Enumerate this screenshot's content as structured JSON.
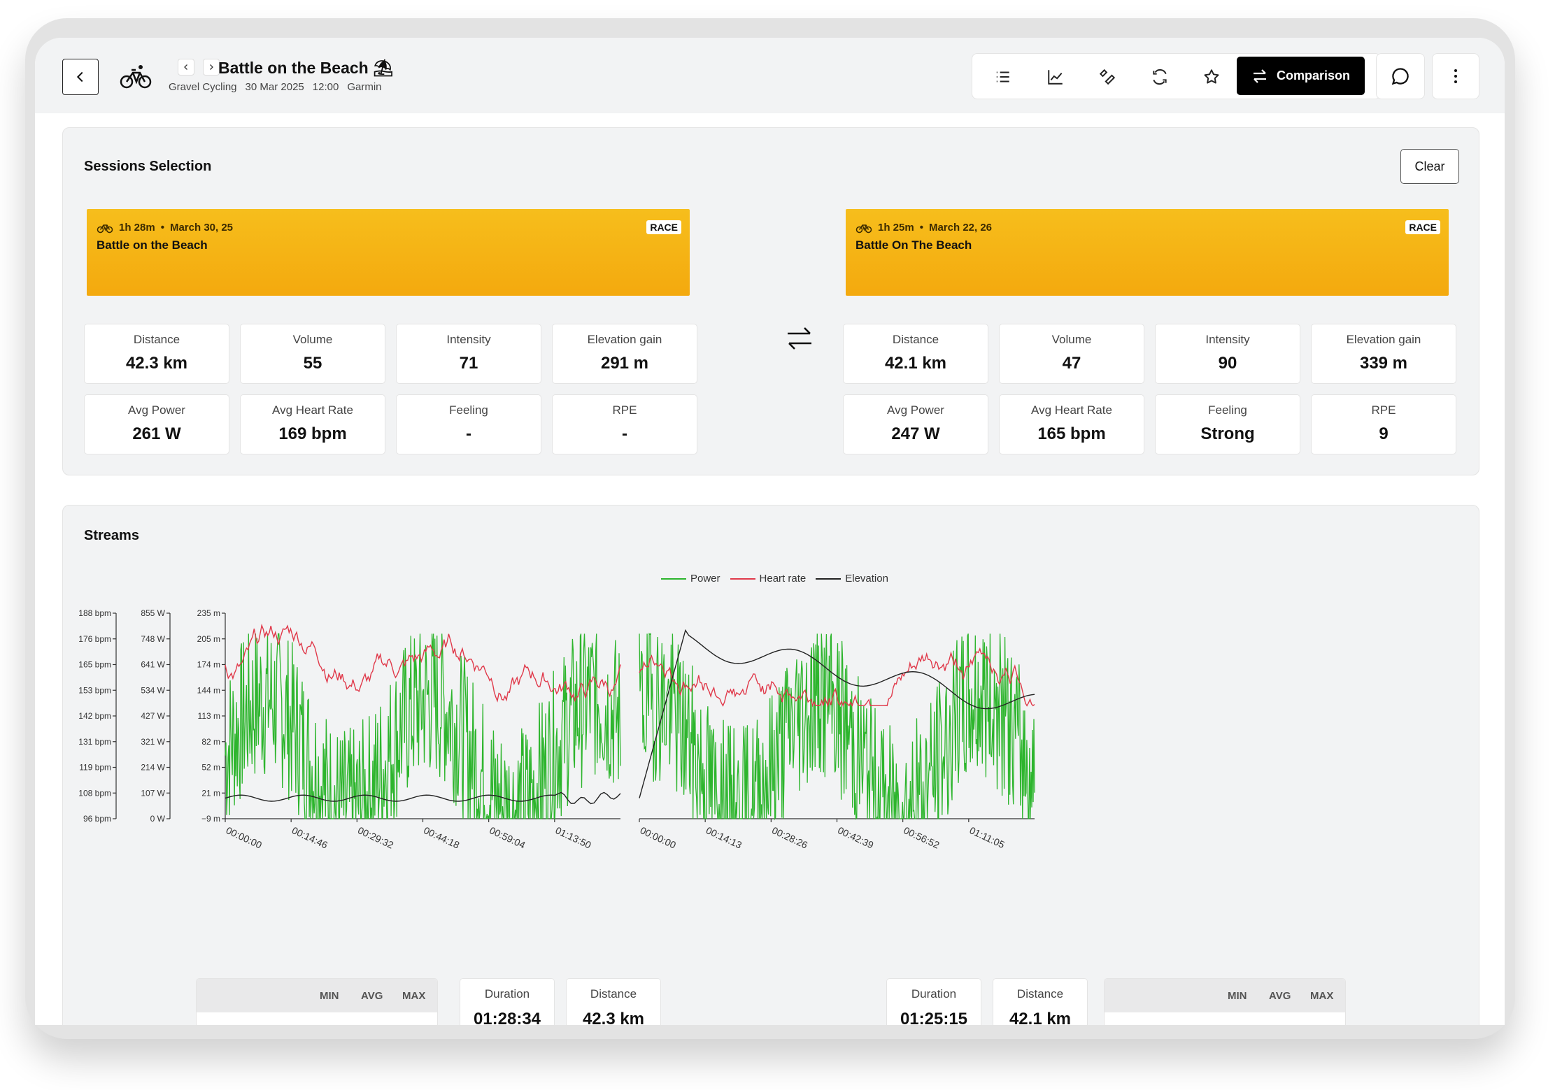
{
  "header": {
    "title": "Battle on the Beach",
    "title_emoji": "⛱",
    "sport": "Gravel Cycling",
    "date": "30 Mar 2025",
    "time": "12:00",
    "source": "Garmin",
    "comparison_label": "Comparison"
  },
  "sessions": {
    "title": "Sessions Selection",
    "clear_label": "Clear",
    "left": {
      "duration": "1h 28m",
      "date": "March 30, 25",
      "name": "Battle on the Beach",
      "badge": "RACE",
      "metrics": [
        {
          "label": "Distance",
          "value": "42.3 km"
        },
        {
          "label": "Volume",
          "value": "55"
        },
        {
          "label": "Intensity",
          "value": "71"
        },
        {
          "label": "Elevation gain",
          "value": "291 m"
        },
        {
          "label": "Avg Power",
          "value": "261 W"
        },
        {
          "label": "Avg Heart Rate",
          "value": "169 bpm"
        },
        {
          "label": "Feeling",
          "value": "-"
        },
        {
          "label": "RPE",
          "value": "-"
        }
      ]
    },
    "right": {
      "duration": "1h 25m",
      "date": "March 22, 26",
      "name": "Battle On The Beach",
      "badge": "RACE",
      "metrics": [
        {
          "label": "Distance",
          "value": "42.1 km"
        },
        {
          "label": "Volume",
          "value": "47"
        },
        {
          "label": "Intensity",
          "value": "90"
        },
        {
          "label": "Elevation gain",
          "value": "339 m"
        },
        {
          "label": "Avg Power",
          "value": "247 W"
        },
        {
          "label": "Avg Heart Rate",
          "value": "165 bpm"
        },
        {
          "label": "Feeling",
          "value": "Strong"
        },
        {
          "label": "RPE",
          "value": "9"
        }
      ]
    }
  },
  "streams": {
    "title": "Streams",
    "legend": [
      {
        "name": "Power",
        "color": "#2db52d"
      },
      {
        "name": "Heart rate",
        "color": "#e0394a"
      },
      {
        "name": "Elevation",
        "color": "#222222"
      }
    ],
    "left": {
      "duration_label": "Duration",
      "duration": "01:28:34",
      "distance_label": "Distance",
      "distance": "42.3 km"
    },
    "right": {
      "duration_label": "Duration",
      "duration": "01:25:15",
      "distance_label": "Distance",
      "distance": "42.1 km"
    },
    "table_headers": [
      "MIN",
      "AVG",
      "MAX"
    ]
  },
  "chart_data": [
    {
      "type": "line",
      "series": [
        {
          "name": "Power",
          "color": "#2db52d",
          "axis": "W",
          "range": [
            0,
            855
          ]
        },
        {
          "name": "Heart rate",
          "color": "#e0394a",
          "axis": "bpm",
          "range": [
            96,
            188
          ]
        },
        {
          "name": "Elevation",
          "color": "#222222",
          "axis": "m",
          "range": [
            -9,
            235
          ]
        }
      ],
      "hr_ticks": [
        "188 bpm",
        "176 bpm",
        "165 bpm",
        "153 bpm",
        "142 bpm",
        "131 bpm",
        "119 bpm",
        "108 bpm",
        "96 bpm"
      ],
      "power_ticks": [
        "855 W",
        "748 W",
        "641 W",
        "534 W",
        "427 W",
        "321 W",
        "214 W",
        "107 W",
        "0 W"
      ],
      "elev_ticks": [
        "235 m",
        "205 m",
        "174 m",
        "144 m",
        "113 m",
        "82 m",
        "52 m",
        "21 m",
        "−9 m"
      ],
      "x_ticks": [
        "00:00:00",
        "00:14:46",
        "00:29:32",
        "00:44:18",
        "00:59:04",
        "01:13:50"
      ]
    },
    {
      "type": "line",
      "series": [
        {
          "name": "Power",
          "color": "#2db52d"
        },
        {
          "name": "Heart rate",
          "color": "#e0394a"
        },
        {
          "name": "Elevation",
          "color": "#222222"
        }
      ],
      "x_ticks": [
        "00:00:00",
        "00:14:13",
        "00:28:26",
        "00:42:39",
        "00:56:52",
        "01:11:05"
      ]
    }
  ]
}
